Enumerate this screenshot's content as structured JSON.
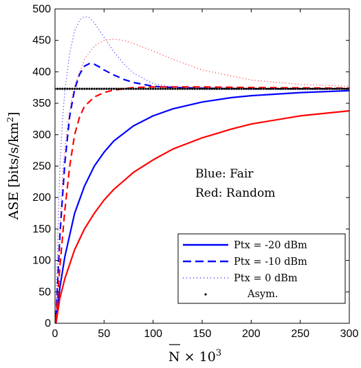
{
  "chart_data": {
    "type": "line",
    "xlabel": "N × 10",
    "xlabel_sup": "3",
    "ylabel": "ASE [bits/s/km",
    "ylabel_sup": "2",
    "ylabel_end": "]",
    "xlim": [
      0,
      300
    ],
    "ylim": [
      0,
      500
    ],
    "xticks": [
      "0",
      "50",
      "100",
      "150",
      "200",
      "250",
      "300"
    ],
    "yticks": [
      "0",
      "50",
      "100",
      "150",
      "200",
      "250",
      "300",
      "350",
      "400",
      "450",
      "500"
    ],
    "grid": false,
    "annotations": [
      "Blue: Fair",
      "Red: Random"
    ],
    "legend": {
      "placement": "bottom-right",
      "entries": [
        "Ptx = -20 dBm",
        "Ptx = -10 dBm",
        "Ptx = 0 dBm",
        "Asym."
      ]
    },
    "colors": {
      "blue": "#0000ff",
      "red": "#ff0000",
      "black": "#000000"
    },
    "series": [
      {
        "name": "Ptx = -20 dBm",
        "scheme": "Fair",
        "color": "#0000ff",
        "style": "solid",
        "x": [
          1,
          5,
          10,
          20,
          30,
          40,
          50,
          60,
          80,
          100,
          120,
          150,
          180,
          200,
          250,
          300
        ],
        "y": [
          0,
          57,
          106,
          175,
          218,
          250,
          272,
          290,
          314,
          330,
          341,
          352,
          359,
          362,
          367,
          370
        ]
      },
      {
        "name": "Ptx = -20 dBm",
        "scheme": "Random",
        "color": "#ff0000",
        "style": "solid",
        "x": [
          1,
          5,
          10,
          20,
          30,
          40,
          50,
          60,
          80,
          100,
          120,
          150,
          180,
          200,
          250,
          300
        ],
        "y": [
          0,
          40,
          71,
          117,
          150,
          175,
          196,
          213,
          240,
          260,
          277,
          295,
          309,
          317,
          330,
          338
        ]
      },
      {
        "name": "Ptx = -10 dBm",
        "scheme": "Fair",
        "color": "#0000ff",
        "style": "dashed",
        "x": [
          1,
          5,
          10,
          15,
          20,
          25,
          30,
          35,
          40,
          45,
          50,
          60,
          70,
          80,
          100,
          120,
          150,
          200,
          300
        ],
        "y": [
          10,
          140,
          255,
          330,
          372,
          396,
          409,
          413,
          412,
          408,
          403,
          395,
          388,
          383,
          377,
          375,
          374,
          373,
          373
        ]
      },
      {
        "name": "Ptx = -10 dBm",
        "scheme": "Random",
        "color": "#ff0000",
        "style": "dashed",
        "x": [
          1,
          5,
          10,
          15,
          20,
          25,
          30,
          40,
          50,
          60,
          70,
          80,
          100,
          150,
          200,
          300
        ],
        "y": [
          5,
          90,
          180,
          250,
          300,
          328,
          345,
          360,
          367,
          371,
          373,
          375,
          376,
          376,
          375,
          374
        ]
      },
      {
        "name": "Ptx = 0 dBm",
        "scheme": "Fair",
        "color": "#0000ff",
        "style": "dotted",
        "x": [
          1,
          3,
          5,
          8,
          10,
          15,
          20,
          25,
          30,
          35,
          40,
          50,
          60,
          70,
          80,
          100,
          120,
          150,
          200,
          300
        ],
        "y": [
          15,
          150,
          250,
          330,
          370,
          430,
          465,
          482,
          488,
          486,
          478,
          455,
          432,
          413,
          398,
          381,
          376,
          374,
          373,
          373
        ]
      },
      {
        "name": "Ptx = 0 dBm",
        "scheme": "Random",
        "color": "#ff0000",
        "style": "dotted",
        "x": [
          1,
          3,
          5,
          8,
          10,
          15,
          20,
          30,
          40,
          50,
          60,
          70,
          80,
          100,
          120,
          150,
          200,
          250,
          300
        ],
        "y": [
          5,
          80,
          150,
          240,
          280,
          340,
          378,
          420,
          441,
          450,
          452,
          450,
          445,
          433,
          420,
          403,
          387,
          380,
          377
        ]
      },
      {
        "name": "Asym.",
        "color": "#000000",
        "style": "marker",
        "x": [
          0,
          300
        ],
        "y": [
          373,
          373
        ]
      }
    ]
  }
}
